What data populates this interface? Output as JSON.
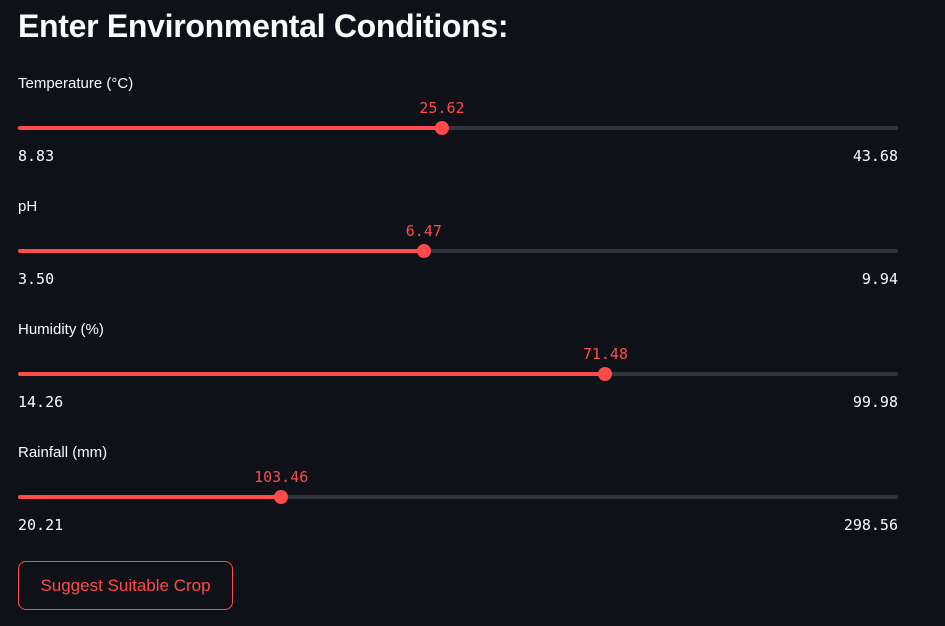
{
  "header": {
    "title": "Enter Environmental Conditions:"
  },
  "colors": {
    "accent": "#ff4b4b",
    "background": "#0e1117",
    "track": "#31333f",
    "text": "#fafafa"
  },
  "sliders": [
    {
      "label": "Temperature (°C)",
      "value": 25.62,
      "value_text": "25.62",
      "min": 8.83,
      "min_text": "8.83",
      "max": 43.68,
      "max_text": "43.68"
    },
    {
      "label": "pH",
      "value": 6.47,
      "value_text": "6.47",
      "min": 3.5,
      "min_text": "3.50",
      "max": 9.94,
      "max_text": "9.94"
    },
    {
      "label": "Humidity (%)",
      "value": 71.48,
      "value_text": "71.48",
      "min": 14.26,
      "min_text": "14.26",
      "max": 99.98,
      "max_text": "99.98"
    },
    {
      "label": "Rainfall (mm)",
      "value": 103.46,
      "value_text": "103.46",
      "min": 20.21,
      "min_text": "20.21",
      "max": 298.56,
      "max_text": "298.56"
    }
  ],
  "button": {
    "label": "Suggest Suitable Crop"
  }
}
